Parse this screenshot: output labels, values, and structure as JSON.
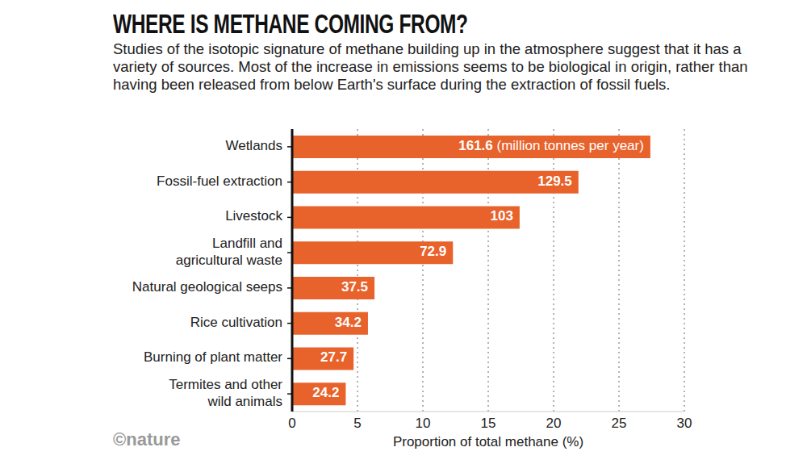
{
  "chart_data": {
    "type": "bar",
    "orientation": "horizontal",
    "title": "WHERE IS METHANE COMING FROM?",
    "subtitle": "Studies of the isotopic signature of methane building up in the atmosphere suggest that it has a variety of sources. Most of the increase in emissions seems to be biological in origin, rather than having been released from below Earth's surface during the extraction of fossil fuels.",
    "categories": [
      "Wetlands",
      "Fossil-fuel extraction",
      "Livestock",
      "Landfill and agricultural waste",
      "Natural geological seeps",
      "Rice cultivation",
      "Burning of plant matter",
      "Termites and other wild animals"
    ],
    "values": [
      27.4,
      21.9,
      17.4,
      12.3,
      6.3,
      5.8,
      4.7,
      4.1
    ],
    "emissions": [
      161.6,
      129.5,
      103,
      72.9,
      37.5,
      34.2,
      27.7,
      24.2
    ],
    "emissions_unit": "(million tonnes per year)",
    "xlabel": "Proportion of total methane (%)",
    "xlim": [
      0,
      30
    ],
    "xticks": [
      0,
      5,
      10,
      15,
      20,
      25,
      30
    ],
    "grid": true,
    "color": "#e8622c",
    "source": "©nature"
  }
}
